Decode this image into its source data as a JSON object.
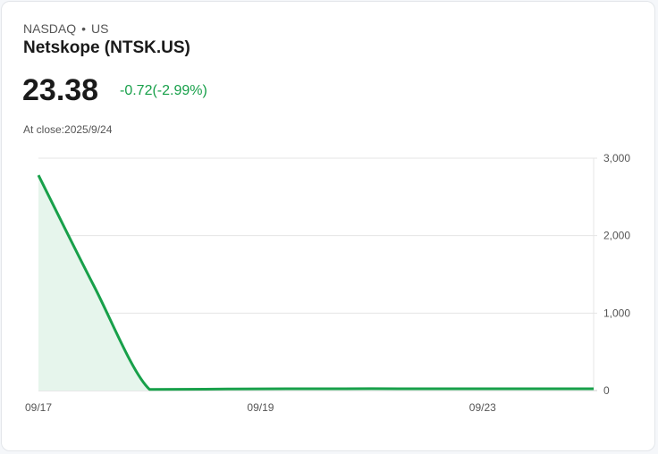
{
  "header": {
    "exchange": "NASDAQ",
    "separator": "•",
    "region": "US",
    "name": "Netskope (NTSK.US)"
  },
  "quote": {
    "price": "23.38",
    "change": "-0.72(-2.99%)",
    "at_close": "At close:2025/9/24",
    "change_color": "#18a04a"
  },
  "chart_data": {
    "type": "area",
    "title": "Netskope (NTSK.US)",
    "xlabel": "",
    "ylabel": "",
    "x_tick_labels": [
      "09/17",
      "09/19",
      "09/23"
    ],
    "x_tick_indices": [
      0,
      4,
      8
    ],
    "x": [
      0,
      1,
      2,
      3,
      4,
      5,
      6,
      7,
      8,
      9,
      10
    ],
    "values": [
      2780,
      1350,
      15,
      18,
      22,
      23,
      24,
      23,
      23,
      23,
      23
    ],
    "y_ticks": [
      0,
      1000,
      2000,
      3000
    ],
    "y_tick_labels": [
      "0",
      "1,000",
      "2,000",
      "3,000"
    ],
    "ylim": [
      0,
      3000
    ],
    "grid": true,
    "y_axis_position": "right",
    "line_color": "#18a04a",
    "fill_color": "#e6f5ec"
  }
}
